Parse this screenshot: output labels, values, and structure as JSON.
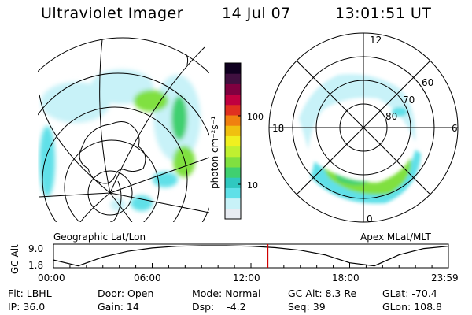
{
  "header": {
    "instrument": "Ultraviolet Imager",
    "date": "14 Jul 07",
    "time": "13:01:51 UT"
  },
  "geo_panel": {
    "caption": "Geographic Lat/Lon"
  },
  "mlt_panel": {
    "caption": "Apex MLat/MLT",
    "mlt_labels": [
      "12",
      "18",
      "6",
      "0"
    ],
    "lat_labels": [
      "60",
      "70",
      "80"
    ]
  },
  "colorbar": {
    "unit_label": "photon cm⁻²s⁻¹",
    "ticks": [
      "100",
      "10"
    ],
    "scale": "log",
    "colors": [
      "#e8ecf2",
      "#c8f2f8",
      "#60e0e8",
      "#30c8c0",
      "#40d070",
      "#80e040",
      "#c0f030",
      "#f0f020",
      "#f0c010",
      "#f08010",
      "#e03020",
      "#c00040",
      "#800040",
      "#401040",
      "#100020"
    ]
  },
  "altitude_plot": {
    "ylabel": "GC Alt",
    "yticks": [
      "9.0",
      "1.8"
    ],
    "xticks": [
      "00:00",
      "06:00",
      "12:00",
      "18:00",
      "23:59"
    ],
    "chart_data": {
      "type": "line",
      "x_unit": "hours UT",
      "x": [
        0,
        1.5,
        3,
        4.5,
        6,
        7.5,
        9,
        10.5,
        12,
        13.5,
        15,
        16.5,
        18,
        19.5,
        21,
        22.5,
        23.98
      ],
      "y": [
        4.0,
        1.9,
        5.0,
        7.0,
        8.2,
        8.8,
        9.0,
        9.0,
        8.8,
        8.3,
        7.4,
        5.8,
        3.0,
        1.9,
        5.8,
        8.0,
        8.8
      ],
      "ylim": [
        1.8,
        9.0
      ],
      "marker_time": "13:01:51"
    }
  },
  "info": {
    "flt": "Flt: LBHL",
    "ip": "IP: 36.0",
    "door": "Door: Open",
    "gain": "Gain: 14",
    "mode": "Mode: Normal",
    "dsp": "Dsp:    -4.2",
    "gcalt": "GC Alt: 8.3 Re",
    "seq": "Seq: 39",
    "glat": "GLat: -70.4",
    "glon": "GLon: 108.8"
  }
}
